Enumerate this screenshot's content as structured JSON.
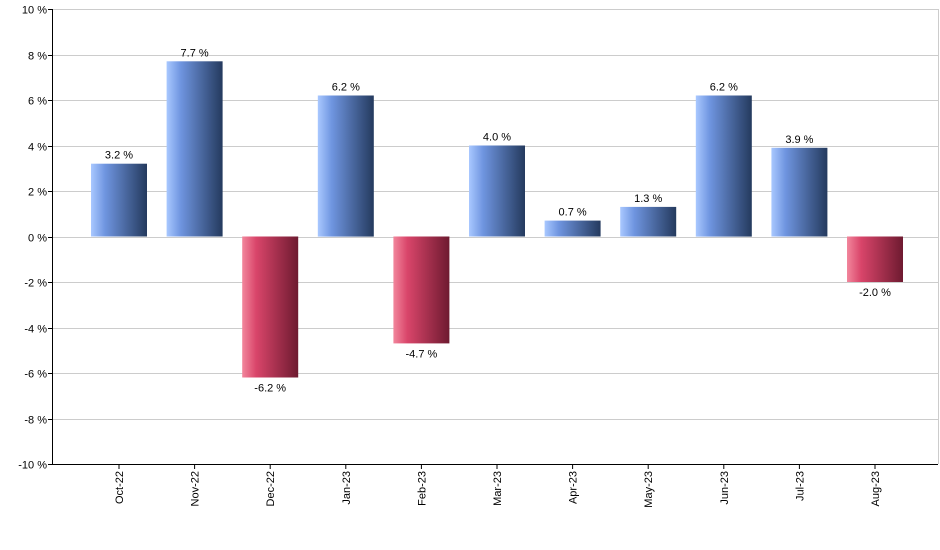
{
  "chart_data": {
    "type": "bar",
    "categories": [
      "Oct-22",
      "Nov-22",
      "Dec-22",
      "Jan-23",
      "Feb-23",
      "Mar-23",
      "Apr-23",
      "May-23",
      "Jun-23",
      "Jul-23",
      "Aug-23"
    ],
    "values": [
      3.2,
      7.7,
      -6.2,
      6.2,
      -4.7,
      4.0,
      0.7,
      1.3,
      6.2,
      3.9,
      -2.0
    ],
    "data_labels": [
      "3.2 %",
      "7.7 %",
      "-6.2 %",
      "6.2 %",
      "-4.7 %",
      "4.0 %",
      "0.7 %",
      "1.3 %",
      "6.2 %",
      "3.9 %",
      "-2.0 %"
    ],
    "ylim": [
      -10,
      10
    ],
    "yticks": [
      10,
      8,
      6,
      4,
      2,
      0,
      -2,
      -4,
      -6,
      -8,
      -10
    ],
    "ytick_labels": [
      "10 %",
      "8 %",
      "6 %",
      "4 %",
      "2 %",
      "0 %",
      "-2 %",
      "-4 %",
      "-6 %",
      "-8 %",
      "-10 %"
    ],
    "grid": true,
    "colors": {
      "positive_light": "#a9c8ff",
      "positive_mid": "#6f95e0",
      "positive_dark": "#243a5e",
      "negative_light": "#f2869c",
      "negative_mid": "#d9456a",
      "negative_dark": "#6e1a30",
      "grid": "#cccccc",
      "axis": "#000000"
    }
  }
}
